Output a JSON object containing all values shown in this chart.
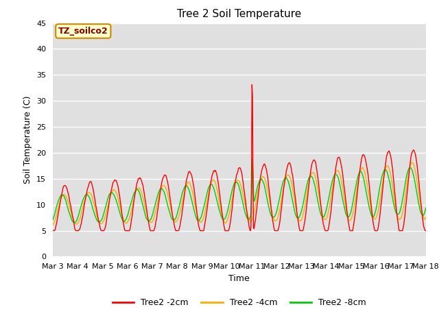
{
  "title": "Tree 2 Soil Temperature",
  "ylabel": "Soil Temperature (C)",
  "xlabel": "Time",
  "annotation": "TZ_soilco2",
  "xlim": [
    0,
    15
  ],
  "ylim": [
    0,
    45
  ],
  "yticks": [
    0,
    5,
    10,
    15,
    20,
    25,
    30,
    35,
    40,
    45
  ],
  "xtick_labels": [
    "Mar 3",
    "Mar 4",
    "Mar 5",
    "Mar 6",
    "Mar 7",
    "Mar 8",
    "Mar 9",
    "Mar 10",
    "Mar 11",
    "Mar 12",
    "Mar 13",
    "Mar 14",
    "Mar 15",
    "Mar 16",
    "Mar 17",
    "Mar 18"
  ],
  "legend_labels": [
    "Tree2 -2cm",
    "Tree2 -4cm",
    "Tree2 -8cm"
  ],
  "colors": [
    "#ff0000",
    "#ffaa00",
    "#00cc00"
  ],
  "bg_color": "#e0e0e0",
  "grid_color": "#ffffff",
  "title_fontsize": 11,
  "label_fontsize": 9,
  "tick_fontsize": 8
}
